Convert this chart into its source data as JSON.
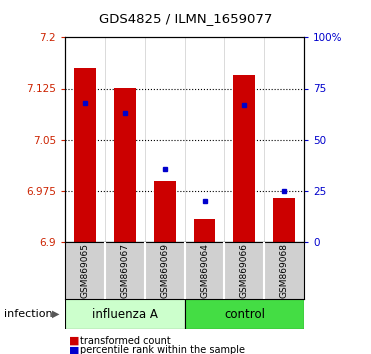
{
  "title": "GDS4825 / ILMN_1659077",
  "categories": [
    "GSM869065",
    "GSM869067",
    "GSM869069",
    "GSM869064",
    "GSM869066",
    "GSM869068"
  ],
  "group_labels": [
    "influenza A",
    "control"
  ],
  "group_sizes": [
    3,
    3
  ],
  "influenza_color": "#ccffcc",
  "control_color": "#44dd44",
  "infection_label": "infection",
  "transformed_counts": [
    7.155,
    7.125,
    6.99,
    6.935,
    7.145,
    6.965
  ],
  "percentile_ranks": [
    68,
    63,
    36,
    20,
    67,
    25
  ],
  "y_min": 6.9,
  "y_max": 7.2,
  "y_ticks": [
    6.9,
    6.975,
    7.05,
    7.125,
    7.2
  ],
  "y_tick_labels": [
    "6.9",
    "6.975",
    "7.05",
    "7.125",
    "7.2"
  ],
  "right_y_ticks": [
    0,
    25,
    50,
    75,
    100
  ],
  "right_y_labels": [
    "0",
    "25",
    "50",
    "75",
    "100%"
  ],
  "bar_color": "#cc0000",
  "dot_color": "#0000cc",
  "bar_width": 0.55,
  "background_color": "#ffffff",
  "tick_label_color_left": "#cc2200",
  "tick_label_color_right": "#0000cc",
  "legend_labels": [
    "transformed count",
    "percentile rank within the sample"
  ],
  "figsize": [
    3.71,
    3.54
  ],
  "dpi": 100
}
